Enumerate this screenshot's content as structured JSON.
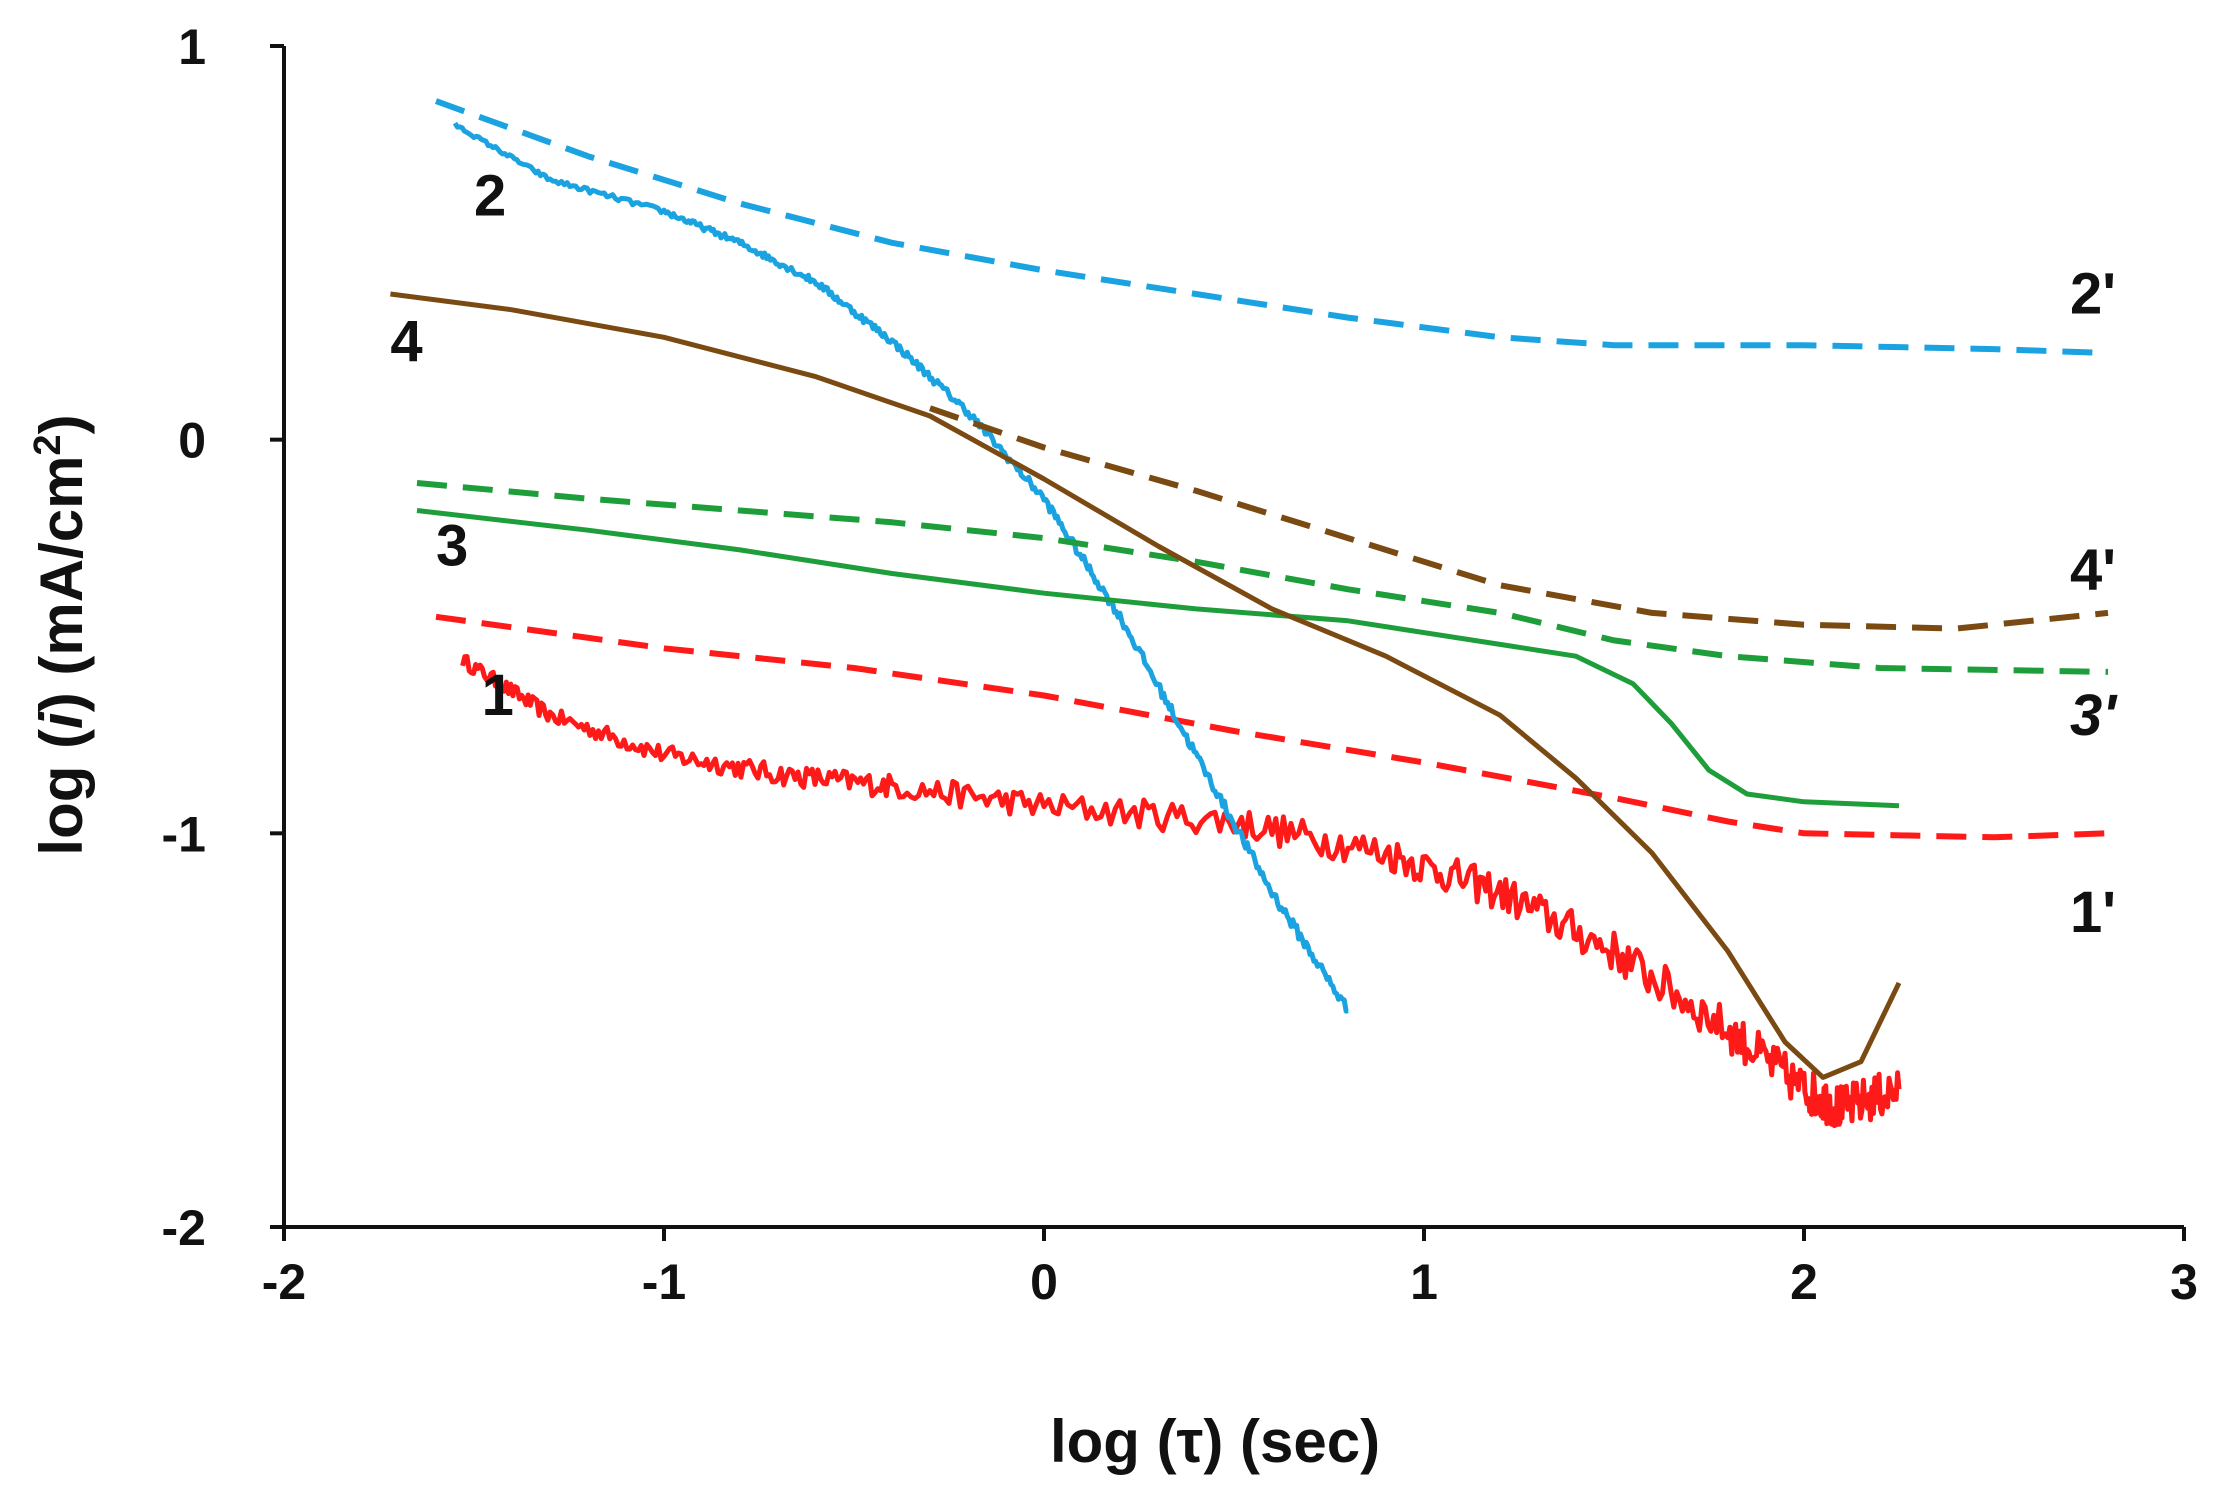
{
  "chart_data": {
    "type": "line",
    "xlabel": "log (τ) (sec)",
    "ylabel_parts": {
      "pre": "log (",
      "var": "i",
      "post": ") (mA/cm",
      "sup": "2",
      "close": ")"
    },
    "xlim": [
      -2,
      3
    ],
    "ylim": [
      -2,
      1
    ],
    "xticks": [
      -2,
      -1,
      0,
      1,
      2,
      3
    ],
    "yticks": [
      1,
      0,
      -1,
      -2
    ],
    "xtick_labels": [
      "-2",
      "-1",
      "0",
      "1",
      "2",
      "3"
    ],
    "ytick_labels": [
      "1",
      "0",
      "-1",
      "-2"
    ],
    "grid": false,
    "series": [
      {
        "name": "1",
        "color": "#ff1a1a",
        "style": "solid",
        "noise": 0.06,
        "x": [
          -1.53,
          -1.3,
          -1.0,
          -0.7,
          -0.4,
          0.0,
          0.5,
          0.9,
          1.2,
          1.5,
          1.8,
          2.0,
          2.1,
          2.25
        ],
        "y": [
          -0.56,
          -0.7,
          -0.8,
          -0.85,
          -0.88,
          -0.93,
          -0.97,
          -1.05,
          -1.15,
          -1.3,
          -1.5,
          -1.65,
          -1.7,
          -1.65
        ],
        "label": "1",
        "label_at": [
          -1.48,
          -0.7
        ]
      },
      {
        "name": "1'",
        "color": "#ff1a1a",
        "style": "dashed",
        "noise": 0,
        "x": [
          -1.6,
          -1.0,
          -0.5,
          0.0,
          0.5,
          1.0,
          1.5,
          1.8,
          2.0,
          2.5,
          2.8
        ],
        "y": [
          -0.45,
          -0.53,
          -0.58,
          -0.65,
          -0.74,
          -0.82,
          -0.91,
          -0.97,
          -1.0,
          -1.01,
          -1.0
        ],
        "label": "1'",
        "label_at": [
          2.7,
          -1.25
        ]
      },
      {
        "name": "2",
        "color": "#1aa3e0",
        "style": "solid",
        "noise": 0.015,
        "x": [
          -1.55,
          -1.3,
          -1.0,
          -0.8,
          -0.6,
          -0.4,
          -0.2,
          0.0,
          0.2,
          0.4,
          0.6,
          0.8
        ],
        "y": [
          0.8,
          0.66,
          0.58,
          0.5,
          0.4,
          0.25,
          0.07,
          -0.15,
          -0.45,
          -0.8,
          -1.15,
          -1.45
        ],
        "label": "2",
        "label_at": [
          -1.5,
          0.57
        ]
      },
      {
        "name": "2'",
        "color": "#1aa3e0",
        "style": "dashed",
        "noise": 0,
        "x": [
          -1.6,
          -1.2,
          -0.8,
          -0.4,
          0.0,
          0.4,
          0.8,
          1.2,
          1.5,
          2.0,
          2.5,
          2.8
        ],
        "y": [
          0.86,
          0.72,
          0.6,
          0.5,
          0.43,
          0.37,
          0.31,
          0.26,
          0.24,
          0.24,
          0.23,
          0.22
        ],
        "label": "2'",
        "label_at": [
          2.7,
          0.32
        ]
      },
      {
        "name": "3",
        "color": "#1e9e3a",
        "style": "solid",
        "noise": 0,
        "x": [
          -1.65,
          -1.2,
          -0.8,
          -0.4,
          0.0,
          0.4,
          0.8,
          1.2,
          1.4,
          1.55,
          1.65,
          1.75,
          1.85,
          2.0,
          2.25
        ],
        "y": [
          -0.18,
          -0.23,
          -0.28,
          -0.34,
          -0.39,
          -0.43,
          -0.46,
          -0.52,
          -0.55,
          -0.62,
          -0.72,
          -0.84,
          -0.9,
          -0.92,
          -0.93
        ],
        "label": "3",
        "label_at": [
          -1.6,
          -0.32
        ]
      },
      {
        "name": "3'",
        "color": "#1e9e3a",
        "style": "dashed",
        "noise": 0,
        "x": [
          -1.65,
          -1.2,
          -0.8,
          -0.4,
          0.0,
          0.4,
          0.8,
          1.2,
          1.5,
          1.8,
          2.2,
          2.8
        ],
        "y": [
          -0.11,
          -0.15,
          -0.18,
          -0.21,
          -0.25,
          -0.31,
          -0.38,
          -0.44,
          -0.51,
          -0.55,
          -0.58,
          -0.59
        ],
        "label": "3'",
        "label_at": [
          2.7,
          -0.75
        ],
        "italic": true
      },
      {
        "name": "4",
        "color": "#7a4a12",
        "style": "solid",
        "noise": 0,
        "x": [
          -1.72,
          -1.4,
          -1.0,
          -0.6,
          -0.3,
          0.0,
          0.3,
          0.6,
          0.9,
          1.2,
          1.4,
          1.6,
          1.8,
          1.95,
          2.05,
          2.15,
          2.25
        ],
        "y": [
          0.37,
          0.33,
          0.26,
          0.16,
          0.06,
          -0.1,
          -0.27,
          -0.43,
          -0.55,
          -0.7,
          -0.86,
          -1.05,
          -1.3,
          -1.53,
          -1.62,
          -1.58,
          -1.38
        ],
        "label": "4",
        "label_at": [
          -1.72,
          0.2
        ]
      },
      {
        "name": "4'",
        "color": "#7a4a12",
        "style": "dashed",
        "noise": 0,
        "x": [
          -0.3,
          0.0,
          0.4,
          0.8,
          1.2,
          1.6,
          2.0,
          2.4,
          2.8
        ],
        "y": [
          0.08,
          -0.02,
          -0.13,
          -0.25,
          -0.37,
          -0.44,
          -0.47,
          -0.48,
          -0.44
        ],
        "label": "4'",
        "label_at": [
          2.7,
          -0.38
        ]
      }
    ]
  }
}
